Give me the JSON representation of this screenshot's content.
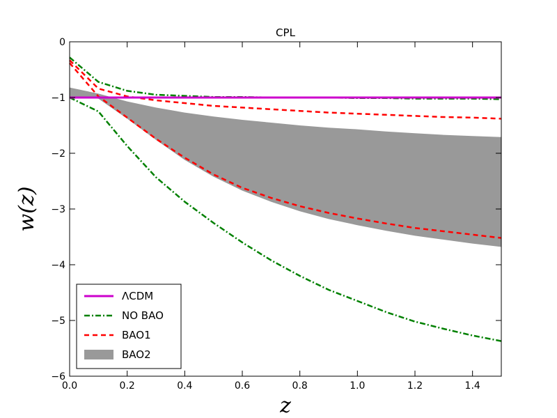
{
  "chart_data": {
    "type": "line",
    "title": "CPL",
    "xlabel": "z",
    "ylabel": "w(z)",
    "xlim": [
      0.0,
      1.5
    ],
    "ylim": [
      -6,
      0
    ],
    "x_ticks": [
      0.0,
      0.2,
      0.4,
      0.6,
      0.8,
      1.0,
      1.2,
      1.4
    ],
    "x_tick_labels": [
      "0.0",
      "0.2",
      "0.4",
      "0.6",
      "0.8",
      "1.0",
      "1.2",
      "1.4"
    ],
    "y_ticks": [
      0,
      -1,
      -2,
      -3,
      -4,
      -5,
      -6
    ],
    "y_tick_labels": [
      "0",
      "−1",
      "−2",
      "−3",
      "−4",
      "−5",
      "−6"
    ],
    "grid": false,
    "legend_position": "lower-left",
    "series": [
      {
        "name": "ΛCDM",
        "style": "solid",
        "color": "#cc00cc",
        "lines": [
          {
            "x": [
              0.0,
              1.5
            ],
            "y": [
              -1.0,
              -1.0
            ]
          }
        ]
      },
      {
        "name": "NO BAO",
        "style": "dashdot",
        "color": "#008000",
        "lines": [
          {
            "x": [
              0.0,
              0.1,
              0.2,
              0.3,
              0.4,
              0.5,
              0.6,
              0.7,
              0.8,
              0.9,
              1.0,
              1.1,
              1.2,
              1.3,
              1.4,
              1.5
            ],
            "y": [
              -0.28,
              -0.72,
              -0.88,
              -0.95,
              -0.97,
              -0.99,
              -0.99,
              -1.0,
              -1.0,
              -1.0,
              -1.01,
              -1.01,
              -1.02,
              -1.02,
              -1.02,
              -1.03
            ]
          },
          {
            "x": [
              0.0,
              0.1,
              0.2,
              0.3,
              0.4,
              0.5,
              0.6,
              0.7,
              0.8,
              0.9,
              1.0,
              1.1,
              1.2,
              1.3,
              1.4,
              1.5
            ],
            "y": [
              -1.0,
              -1.25,
              -1.87,
              -2.43,
              -2.87,
              -3.25,
              -3.6,
              -3.92,
              -4.2,
              -4.45,
              -4.65,
              -4.85,
              -5.02,
              -5.15,
              -5.27,
              -5.37
            ]
          }
        ]
      },
      {
        "name": "BAO1",
        "style": "dashed",
        "color": "#ff0000",
        "lines": [
          {
            "x": [
              0.0,
              0.1,
              0.2,
              0.3,
              0.4,
              0.5,
              0.6,
              0.7,
              0.8,
              0.9,
              1.0,
              1.1,
              1.2,
              1.3,
              1.4,
              1.5
            ],
            "y": [
              -0.33,
              -0.84,
              -0.98,
              -1.05,
              -1.1,
              -1.15,
              -1.18,
              -1.21,
              -1.24,
              -1.27,
              -1.29,
              -1.31,
              -1.33,
              -1.35,
              -1.36,
              -1.38
            ]
          },
          {
            "x": [
              0.0,
              0.1,
              0.2,
              0.3,
              0.4,
              0.5,
              0.6,
              0.7,
              0.8,
              0.9,
              1.0,
              1.1,
              1.2,
              1.3,
              1.4,
              1.5
            ],
            "y": [
              -0.38,
              -0.98,
              -1.36,
              -1.74,
              -2.08,
              -2.38,
              -2.62,
              -2.8,
              -2.95,
              -3.07,
              -3.17,
              -3.26,
              -3.34,
              -3.4,
              -3.46,
              -3.52
            ]
          }
        ]
      },
      {
        "name": "BAO2",
        "style": "band",
        "color": "#999999",
        "upper": {
          "x": [
            0.0,
            0.1,
            0.2,
            0.3,
            0.4,
            0.5,
            0.6,
            0.7,
            0.8,
            0.9,
            1.0,
            1.1,
            1.2,
            1.3,
            1.4,
            1.5
          ],
          "y": [
            -0.82,
            -0.93,
            -1.07,
            -1.18,
            -1.27,
            -1.34,
            -1.4,
            -1.45,
            -1.5,
            -1.54,
            -1.57,
            -1.61,
            -1.64,
            -1.67,
            -1.69,
            -1.71
          ]
        },
        "lower": {
          "x": [
            0.0,
            0.1,
            0.2,
            0.3,
            0.4,
            0.5,
            0.6,
            0.7,
            0.8,
            0.9,
            1.0,
            1.1,
            1.2,
            1.3,
            1.4,
            1.5
          ],
          "y": [
            -1.0,
            -1.02,
            -1.38,
            -1.76,
            -2.12,
            -2.42,
            -2.67,
            -2.87,
            -3.04,
            -3.18,
            -3.29,
            -3.39,
            -3.48,
            -3.55,
            -3.62,
            -3.68
          ]
        }
      }
    ]
  }
}
